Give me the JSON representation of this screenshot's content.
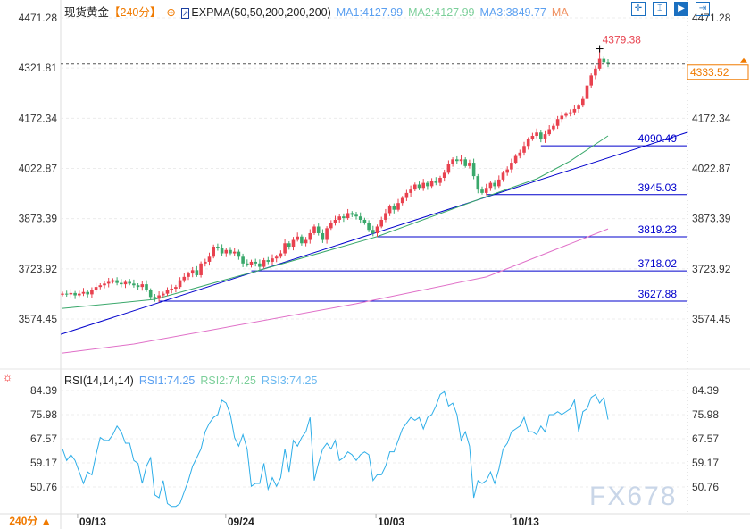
{
  "header": {
    "symbol": "现货黄金",
    "period": "【240分】",
    "indicator": "EXPMA(50,50,200,200,200)",
    "ma1": "MA1:4127.99",
    "ma2": "MA2:4127.99",
    "ma3": "MA3:3849.77",
    "ma": "MA"
  },
  "toolbar": [
    "crosshair",
    "fit-range",
    "select-range",
    "jump-to-end"
  ],
  "price_axis": [
    "4471.28",
    "4321.81",
    "4172.34",
    "4022.87",
    "3873.39",
    "3723.92",
    "3574.45"
  ],
  "current_price": "4333.52",
  "high_label": "4379.38",
  "levels": [
    {
      "label": "4090.49",
      "value": 4090.49,
      "from": 114
    },
    {
      "label": "3945.03",
      "value": 3945.03,
      "from": 101
    },
    {
      "label": "3819.23",
      "value": 3819.23,
      "from": 75
    },
    {
      "label": "3718.02",
      "value": 3718.02,
      "from": 45
    },
    {
      "label": "3627.88",
      "value": 3627.88,
      "from": 23
    }
  ],
  "trendline": {
    "from": [
      -0.4,
      3529
    ],
    "to": [
      149,
      4131
    ]
  },
  "colors": {
    "up": "#e8424f",
    "down": "#3aa86b",
    "ema_fast": "#3aa86b",
    "ema_slow": "#e070c8",
    "rsi": "#2eaee8",
    "level": "#0000cc",
    "current": "#f07a00"
  },
  "closes": [
    3650,
    3648,
    3652,
    3645,
    3650,
    3655,
    3648,
    3660,
    3670,
    3675,
    3680,
    3685,
    3690,
    3682,
    3678,
    3685,
    3680,
    3675,
    3670,
    3678,
    3660,
    3640,
    3635,
    3645,
    3650,
    3660,
    3665,
    3670,
    3690,
    3700,
    3710,
    3720,
    3705,
    3740,
    3745,
    3760,
    3790,
    3785,
    3770,
    3780,
    3770,
    3775,
    3760,
    3740,
    3735,
    3745,
    3740,
    3730,
    3750,
    3745,
    3755,
    3760,
    3770,
    3800,
    3790,
    3810,
    3820,
    3800,
    3810,
    3830,
    3850,
    3830,
    3810,
    3845,
    3860,
    3870,
    3880,
    3875,
    3890,
    3885,
    3880,
    3870,
    3860,
    3840,
    3830,
    3850,
    3870,
    3890,
    3910,
    3900,
    3920,
    3935,
    3950,
    3960,
    3975,
    3965,
    3980,
    3970,
    3985,
    3980,
    3995,
    4010,
    4035,
    4050,
    4045,
    4050,
    4030,
    4040,
    4000,
    3960,
    3950,
    3965,
    3980,
    3970,
    3990,
    4010,
    4020,
    4040,
    4060,
    4070,
    4090,
    4110,
    4120,
    4130,
    4110,
    4125,
    4140,
    4150,
    4170,
    4180,
    4185,
    4190,
    4200,
    4210,
    4230,
    4270,
    4300,
    4320,
    4350,
    4340,
    4333.52
  ],
  "ema_fast": [
    [
      0,
      3606
    ],
    [
      22,
      3633
    ],
    [
      45,
      3713
    ],
    [
      75,
      3820
    ],
    [
      101,
      3939
    ],
    [
      113,
      3992
    ],
    [
      121,
      4045
    ],
    [
      130,
      4120
    ]
  ],
  "ema_slow": [
    [
      0,
      3473
    ],
    [
      17,
      3500
    ],
    [
      70,
      3620
    ],
    [
      101,
      3700
    ],
    [
      130,
      3843
    ]
  ],
  "rsi": {
    "title": "RSI(14,14,14)",
    "rsi1": "RSI1:74.25",
    "rsi2": "RSI2:74.25",
    "rsi3": "RSI3:74.25",
    "axis": [
      "84.39",
      "75.98",
      "67.57",
      "59.17",
      "50.76"
    ],
    "values": [
      64,
      60,
      62,
      60,
      56,
      52,
      56,
      55,
      62,
      68,
      67,
      67,
      69,
      72,
      70,
      66,
      66,
      60,
      59,
      52,
      58,
      61,
      48,
      47,
      53,
      45,
      44,
      44,
      45,
      49,
      53,
      58,
      61,
      64,
      70,
      73,
      75,
      76,
      81,
      80,
      76,
      68,
      65,
      69,
      64,
      51,
      52,
      52,
      59,
      50,
      54,
      51,
      54,
      64,
      56,
      67,
      65,
      68,
      70,
      75,
      53,
      59,
      64,
      66,
      64,
      67,
      60,
      61,
      63,
      62,
      60,
      62,
      63,
      62,
      53,
      55,
      55,
      58,
      63,
      63,
      67,
      71,
      73,
      75,
      74,
      75,
      71,
      75,
      76,
      79,
      83,
      84,
      79,
      80,
      76,
      67,
      70,
      65,
      47,
      53,
      52,
      53,
      56,
      52,
      57,
      64,
      66,
      70,
      71,
      72,
      75,
      70,
      70,
      69,
      72,
      70,
      76,
      76,
      77,
      76,
      77,
      78,
      81,
      70,
      77,
      78,
      82,
      83,
      80,
      82,
      74.25
    ]
  },
  "dates": [
    {
      "label": "09/13",
      "idx": 3.6
    },
    {
      "label": "09/24",
      "idx": 38.9
    },
    {
      "label": "10/03",
      "idx": 74.7
    },
    {
      "label": "10/13",
      "idx": 106.8
    }
  ],
  "footer": "240分 ▲",
  "watermark": "FX678"
}
